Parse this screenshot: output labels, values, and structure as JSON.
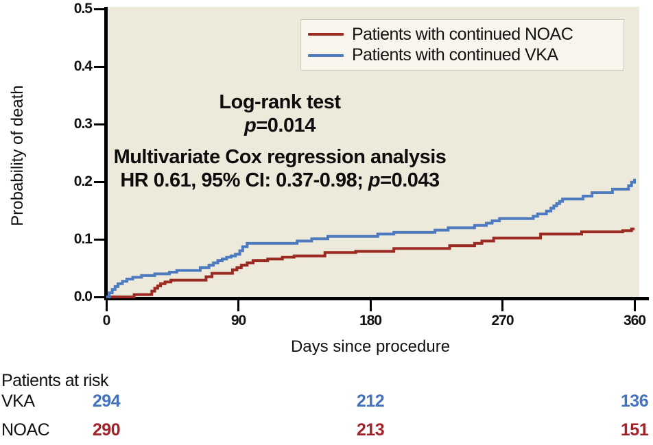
{
  "chart_data": {
    "type": "line",
    "subtype": "kaplan-meier-step",
    "xlabel": "Days since procedure",
    "ylabel": "Probability of death",
    "xlim": [
      0,
      360
    ],
    "ylim": [
      0.0,
      0.5
    ],
    "x_ticks": [
      0,
      90,
      180,
      270,
      360
    ],
    "x_tick_labels": [
      "0",
      "90",
      "180",
      "270",
      "360"
    ],
    "y_ticks": [
      0.0,
      0.1,
      0.2,
      0.3,
      0.4,
      0.5
    ],
    "y_tick_labels": [
      "0.0",
      "0.1",
      "0.2",
      "0.3",
      "0.4",
      "0.5"
    ],
    "grid": false,
    "legend_position": "top-right",
    "plot_background": "#EDEADB",
    "series": [
      {
        "name": "Patients with continued NOAC",
        "color": "#9B2A23",
        "points": [
          [
            0,
            0
          ],
          [
            19,
            0.004
          ],
          [
            31,
            0.01
          ],
          [
            33,
            0.015
          ],
          [
            35,
            0.019
          ],
          [
            37,
            0.023
          ],
          [
            40,
            0.026
          ],
          [
            44,
            0.029
          ],
          [
            68,
            0.035
          ],
          [
            72,
            0.041
          ],
          [
            86,
            0.047
          ],
          [
            89,
            0.051
          ],
          [
            92,
            0.055
          ],
          [
            96,
            0.059
          ],
          [
            100,
            0.063
          ],
          [
            110,
            0.066
          ],
          [
            120,
            0.069
          ],
          [
            128,
            0.071
          ],
          [
            149,
            0.077
          ],
          [
            170,
            0.079
          ],
          [
            196,
            0.084
          ],
          [
            234,
            0.089
          ],
          [
            251,
            0.093
          ],
          [
            256,
            0.097
          ],
          [
            264,
            0.102
          ],
          [
            296,
            0.109
          ],
          [
            324,
            0.113
          ],
          [
            352,
            0.115
          ],
          [
            358,
            0.118
          ]
        ]
      },
      {
        "name": "Patients with continued VKA",
        "color": "#4E7BBF",
        "points": [
          [
            0,
            0
          ],
          [
            2,
            0.007
          ],
          [
            4,
            0.013
          ],
          [
            6,
            0.018
          ],
          [
            8,
            0.023
          ],
          [
            11,
            0.027
          ],
          [
            14,
            0.031
          ],
          [
            18,
            0.034
          ],
          [
            24,
            0.037
          ],
          [
            33,
            0.04
          ],
          [
            43,
            0.043
          ],
          [
            48,
            0.046
          ],
          [
            64,
            0.051
          ],
          [
            70,
            0.055
          ],
          [
            73,
            0.059
          ],
          [
            76,
            0.063
          ],
          [
            79,
            0.066
          ],
          [
            82,
            0.069
          ],
          [
            85,
            0.071
          ],
          [
            88,
            0.074
          ],
          [
            91,
            0.08
          ],
          [
            93,
            0.087
          ],
          [
            96,
            0.093
          ],
          [
            130,
            0.097
          ],
          [
            140,
            0.101
          ],
          [
            151,
            0.105
          ],
          [
            185,
            0.109
          ],
          [
            196,
            0.112
          ],
          [
            224,
            0.116
          ],
          [
            233,
            0.12
          ],
          [
            251,
            0.124
          ],
          [
            259,
            0.128
          ],
          [
            263,
            0.132
          ],
          [
            268,
            0.136
          ],
          [
            291,
            0.14
          ],
          [
            294,
            0.144
          ],
          [
            300,
            0.149
          ],
          [
            303,
            0.154
          ],
          [
            305,
            0.158
          ],
          [
            307,
            0.162
          ],
          [
            309,
            0.166
          ],
          [
            311,
            0.17
          ],
          [
            325,
            0.175
          ],
          [
            331,
            0.181
          ],
          [
            345,
            0.187
          ],
          [
            356,
            0.193
          ],
          [
            358,
            0.199
          ],
          [
            360,
            0.205
          ]
        ]
      }
    ],
    "annotations": {
      "logrank": {
        "line1": "Log-rank test",
        "p_symbol": "p",
        "p_rest": "=0.014"
      },
      "cox": {
        "line1": "Multivariate Cox regression analysis",
        "line2_pre": "HR 0.61, 95% CI: 0.37-0.98; ",
        "p_symbol": "p",
        "p_rest": "=0.043"
      }
    }
  },
  "risk_table": {
    "title": "Patients at risk",
    "columns_days": [
      0,
      180,
      360
    ],
    "rows": [
      {
        "label": "VKA",
        "color": "#4272BE",
        "values": [
          "294",
          "212",
          "136"
        ]
      },
      {
        "label": "NOAC",
        "color": "#A1232A",
        "values": [
          "290",
          "213",
          "151"
        ]
      }
    ]
  },
  "colors": {
    "noac_red": "#9B2A23",
    "vka_blue": "#4E7BBF",
    "plot_background": "#EDEADB",
    "legend_background": "#F8F6EC",
    "axis_black": "#000000"
  }
}
